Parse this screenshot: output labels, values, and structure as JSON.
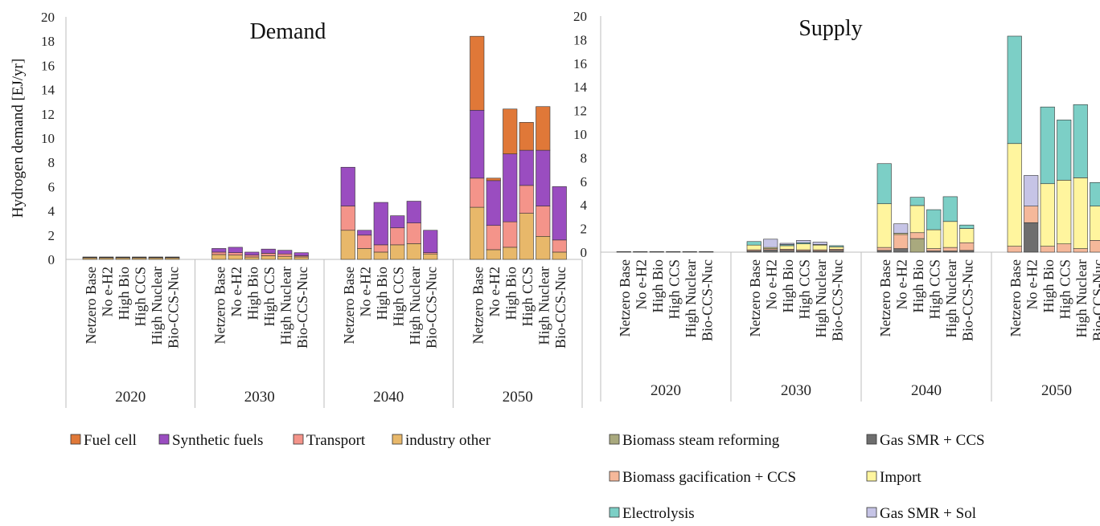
{
  "chart_data": [
    {
      "type": "bar",
      "stacked": true,
      "title": "Demand",
      "ylabel": "Hydrogen demand [EJ/yr]",
      "ylim": [
        0,
        20
      ],
      "yticks": [
        0,
        2,
        4,
        6,
        8,
        10,
        12,
        14,
        16,
        18,
        20
      ],
      "groups": [
        "2020",
        "2030",
        "2040",
        "2050"
      ],
      "scenarios": [
        "Netzero Base",
        "No e-H2",
        "High Bio",
        "High CCS",
        "High Nuclear",
        "Bio-CCS-Nuc"
      ],
      "legend_position": "bottom",
      "series": [
        {
          "name": "industry other",
          "color": "#E8B86A",
          "values": [
            0.12,
            0.12,
            0.12,
            0.12,
            0.12,
            0.12,
            0.4,
            0.35,
            0.2,
            0.3,
            0.25,
            0.2,
            2.4,
            0.9,
            0.6,
            1.2,
            1.3,
            0.45,
            4.3,
            0.8,
            1.0,
            3.8,
            1.9,
            0.6
          ]
        },
        {
          "name": "Transport",
          "color": "#F4948A",
          "values": [
            0.04,
            0.04,
            0.04,
            0.04,
            0.04,
            0.04,
            0.2,
            0.2,
            0.15,
            0.2,
            0.2,
            0.1,
            2.0,
            1.1,
            0.6,
            1.4,
            1.7,
            0.1,
            2.4,
            2.0,
            2.1,
            2.3,
            2.5,
            1.0
          ]
        },
        {
          "name": "Synthetic fuels",
          "color": "#9A4DC0",
          "values": [
            0.04,
            0.04,
            0.04,
            0.04,
            0.04,
            0.04,
            0.3,
            0.45,
            0.25,
            0.35,
            0.3,
            0.25,
            3.2,
            0.4,
            3.5,
            1.0,
            1.8,
            1.85,
            5.6,
            3.7,
            5.6,
            2.9,
            4.6,
            4.4
          ]
        },
        {
          "name": "Fuel cell",
          "color": "#E07838",
          "values": [
            0,
            0,
            0,
            0,
            0,
            0,
            0,
            0,
            0,
            0,
            0,
            0,
            0,
            0,
            0,
            0,
            0,
            0,
            6.1,
            0.2,
            3.7,
            2.3,
            3.6,
            0
          ]
        }
      ]
    },
    {
      "type": "bar",
      "stacked": true,
      "title": "Supply",
      "ylabel": "",
      "ylim": [
        0,
        20
      ],
      "yticks": [
        0,
        2,
        4,
        6,
        8,
        10,
        12,
        14,
        16,
        18,
        20
      ],
      "groups": [
        "2020",
        "2030",
        "2040",
        "2050"
      ],
      "scenarios": [
        "Netzero Base",
        "No e-H2",
        "High Bio",
        "High CCS",
        "High Nuclear",
        "Bio-CCS-Nuc"
      ],
      "legend_position": "bottom",
      "series": [
        {
          "name": "Biomass steam reforming",
          "color": "#A9A97E",
          "values": [
            0,
            0,
            0,
            0,
            0,
            0,
            0,
            0,
            0,
            0,
            0,
            0,
            0,
            0,
            1.15,
            0,
            0,
            0,
            0,
            0,
            0,
            0,
            0,
            0
          ]
        },
        {
          "name": "Gas SMR + CCS",
          "color": "#6E6E6E",
          "values": [
            0.05,
            0.05,
            0.05,
            0.05,
            0.05,
            0.05,
            0.1,
            0.2,
            0.15,
            0.1,
            0.1,
            0.15,
            0.15,
            0.3,
            0,
            0.1,
            0.1,
            0.15,
            0,
            2.5,
            0,
            0,
            0,
            0
          ]
        },
        {
          "name": "Biomass gacification + CCS",
          "color": "#F5B89A",
          "values": [
            0,
            0,
            0,
            0,
            0,
            0,
            0.1,
            0.1,
            0.1,
            0.1,
            0.1,
            0.1,
            0.25,
            1.2,
            0.5,
            0.2,
            0.3,
            0.65,
            0.5,
            1.4,
            0.5,
            0.7,
            0.3,
            1.0
          ]
        },
        {
          "name": "Import",
          "color": "#FFF59E",
          "values": [
            0,
            0,
            0,
            0,
            0,
            0,
            0.4,
            0.1,
            0.3,
            0.5,
            0.4,
            0.2,
            3.7,
            0.1,
            2.3,
            1.6,
            2.2,
            1.2,
            8.7,
            0,
            5.3,
            5.4,
            6.0,
            2.9
          ]
        },
        {
          "name": "Electrolysis",
          "color": "#7CCFC6",
          "values": [
            0,
            0,
            0,
            0,
            0,
            0,
            0.3,
            0,
            0.1,
            0.1,
            0.05,
            0.1,
            3.4,
            0,
            0.7,
            1.7,
            2.1,
            0.3,
            9.1,
            0,
            6.5,
            5.1,
            6.2,
            2.0
          ]
        },
        {
          "name": "Gas SMR + Sol",
          "color": "#C6C4E6",
          "values": [
            0,
            0,
            0,
            0,
            0,
            0,
            0,
            0.7,
            0.1,
            0.2,
            0.2,
            0,
            0,
            0.8,
            0,
            0,
            0,
            0,
            0,
            2.6,
            0,
            0,
            0,
            0
          ]
        }
      ]
    }
  ]
}
